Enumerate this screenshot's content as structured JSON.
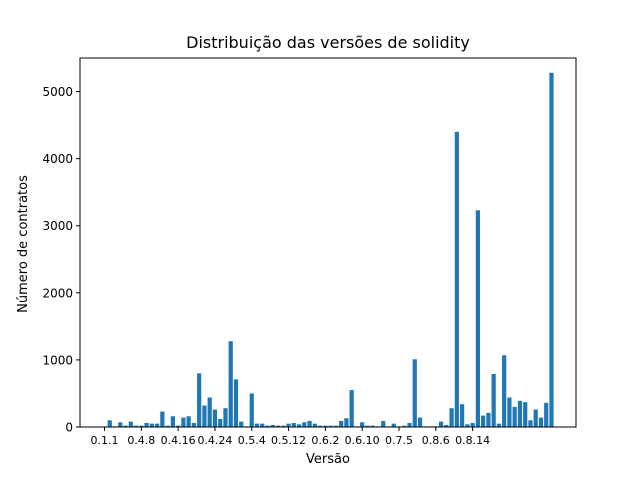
{
  "chart_data": {
    "type": "bar",
    "title": "Distribuição das versões de solidity",
    "xlabel": "Versão",
    "ylabel": "Número de contratos",
    "ylim": [
      0,
      5500
    ],
    "yticks": [
      0,
      1000,
      2000,
      3000,
      4000,
      5000
    ],
    "xtick_labels": [
      "0.1.1",
      "0.4.8",
      "0.4.16",
      "0.4.24",
      "0.5.4",
      "0.5.12",
      "0.6.2",
      "0.6.10",
      "0.7.5",
      "0.8.6",
      "0.8.14"
    ],
    "xtick_every": 7,
    "bar_color": "#1f77b4",
    "grid": false,
    "legend": "none",
    "values": [
      0,
      100,
      10,
      70,
      20,
      80,
      20,
      20,
      60,
      50,
      50,
      230,
      20,
      160,
      20,
      140,
      160,
      60,
      800,
      320,
      440,
      260,
      120,
      280,
      1280,
      710,
      80,
      10,
      500,
      50,
      50,
      20,
      30,
      20,
      20,
      50,
      60,
      40,
      70,
      90,
      50,
      20,
      20,
      20,
      20,
      90,
      130,
      550,
      10,
      70,
      20,
      20,
      10,
      90,
      10,
      50,
      10,
      20,
      60,
      1010,
      140,
      10,
      10,
      10,
      80,
      30,
      280,
      4400,
      340,
      40,
      60,
      3230,
      170,
      210,
      790,
      50,
      1070,
      440,
      300,
      390,
      370,
      100,
      260,
      140,
      360,
      5280
    ]
  }
}
